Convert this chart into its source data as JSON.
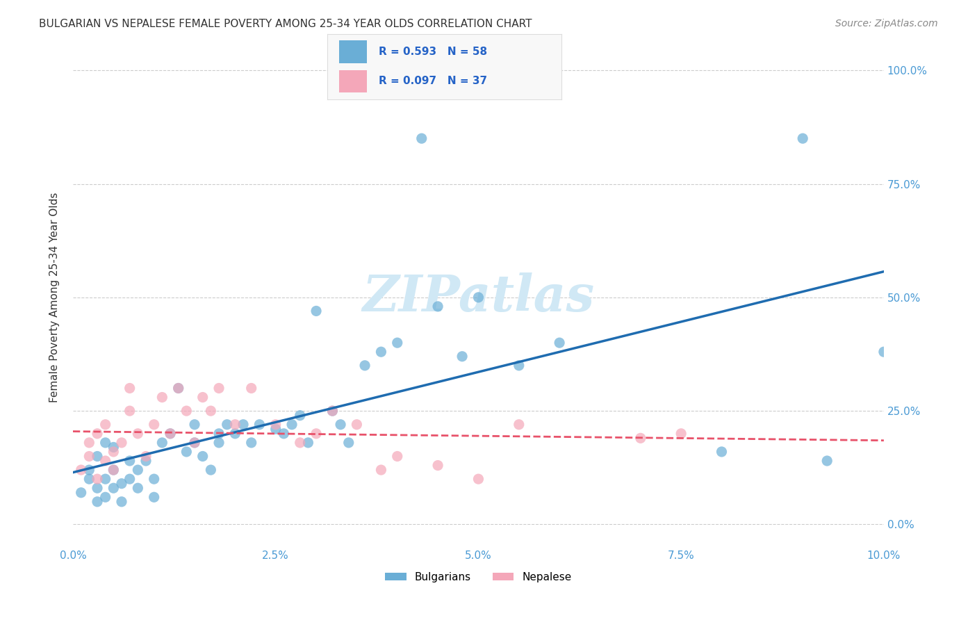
{
  "title": "BULGARIAN VS NEPALESE FEMALE POVERTY AMONG 25-34 YEAR OLDS CORRELATION CHART",
  "source": "Source: ZipAtlas.com",
  "xlabel": "",
  "ylabel": "Female Poverty Among 25-34 Year Olds",
  "xlim": [
    0.0,
    0.1
  ],
  "ylim": [
    -0.05,
    1.05
  ],
  "xtick_labels": [
    "0.0%",
    "2.5%",
    "5.0%",
    "7.5%",
    "10.0%"
  ],
  "xtick_vals": [
    0.0,
    0.025,
    0.05,
    0.075,
    0.1
  ],
  "ytick_labels": [
    "0.0%",
    "25.0%",
    "50.0%",
    "75.0%",
    "100.0%"
  ],
  "ytick_vals": [
    0.0,
    0.25,
    0.5,
    0.75,
    1.0
  ],
  "bulgarian_R": "0.593",
  "bulgarian_N": "58",
  "nepalese_R": "0.097",
  "nepalese_N": "37",
  "blue_color": "#6aaed6",
  "pink_color": "#f4a7b9",
  "blue_line_color": "#1f6cb0",
  "pink_line_color": "#e8526a",
  "legend_text_color": "#2563c7",
  "background_color": "#ffffff",
  "grid_color": "#cccccc",
  "title_color": "#333333",
  "axis_label_color": "#333333",
  "tick_label_color": "#4a9ad4",
  "watermark_text": "ZIPatlas",
  "watermark_color": "#d0e8f5",
  "bulgarian_x": [
    0.001,
    0.002,
    0.002,
    0.003,
    0.003,
    0.003,
    0.004,
    0.004,
    0.004,
    0.005,
    0.005,
    0.005,
    0.006,
    0.006,
    0.007,
    0.007,
    0.008,
    0.008,
    0.009,
    0.01,
    0.01,
    0.011,
    0.012,
    0.013,
    0.014,
    0.015,
    0.015,
    0.016,
    0.017,
    0.018,
    0.018,
    0.019,
    0.02,
    0.021,
    0.022,
    0.023,
    0.025,
    0.026,
    0.027,
    0.028,
    0.029,
    0.03,
    0.032,
    0.033,
    0.034,
    0.036,
    0.038,
    0.04,
    0.043,
    0.045,
    0.048,
    0.05,
    0.055,
    0.06,
    0.08,
    0.09,
    0.093,
    0.1
  ],
  "bulgarian_y": [
    0.07,
    0.1,
    0.12,
    0.05,
    0.08,
    0.15,
    0.06,
    0.1,
    0.18,
    0.08,
    0.12,
    0.17,
    0.05,
    0.09,
    0.1,
    0.14,
    0.08,
    0.12,
    0.14,
    0.06,
    0.1,
    0.18,
    0.2,
    0.3,
    0.16,
    0.18,
    0.22,
    0.15,
    0.12,
    0.18,
    0.2,
    0.22,
    0.2,
    0.22,
    0.18,
    0.22,
    0.21,
    0.2,
    0.22,
    0.24,
    0.18,
    0.47,
    0.25,
    0.22,
    0.18,
    0.35,
    0.38,
    0.4,
    0.85,
    0.48,
    0.37,
    0.5,
    0.35,
    0.4,
    0.16,
    0.85,
    0.14,
    0.38
  ],
  "nepalese_x": [
    0.001,
    0.002,
    0.002,
    0.003,
    0.003,
    0.004,
    0.004,
    0.005,
    0.005,
    0.006,
    0.007,
    0.007,
    0.008,
    0.009,
    0.01,
    0.011,
    0.012,
    0.013,
    0.014,
    0.015,
    0.016,
    0.017,
    0.018,
    0.02,
    0.022,
    0.025,
    0.028,
    0.03,
    0.032,
    0.035,
    0.038,
    0.04,
    0.045,
    0.05,
    0.055,
    0.07,
    0.075
  ],
  "nepalese_y": [
    0.12,
    0.15,
    0.18,
    0.1,
    0.2,
    0.14,
    0.22,
    0.12,
    0.16,
    0.18,
    0.25,
    0.3,
    0.2,
    0.15,
    0.22,
    0.28,
    0.2,
    0.3,
    0.25,
    0.18,
    0.28,
    0.25,
    0.3,
    0.22,
    0.3,
    0.22,
    0.18,
    0.2,
    0.25,
    0.22,
    0.12,
    0.15,
    0.13,
    0.1,
    0.22,
    0.19,
    0.2
  ]
}
